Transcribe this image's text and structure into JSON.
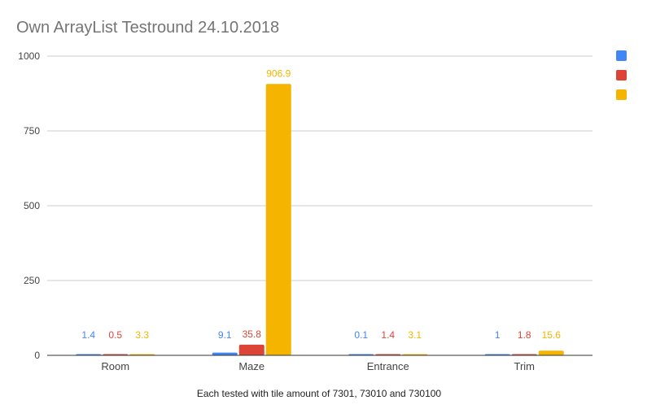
{
  "chart_data": {
    "type": "bar",
    "title": "Own ArrayList Testround 24.10.2018",
    "xlabel": "Each tested with tile amount of  7301, 73010 and 730100",
    "ylabel": "",
    "ylim": [
      0,
      1000
    ],
    "yticks": [
      "0",
      "250",
      "500",
      "750",
      "1000"
    ],
    "categories": [
      "Room",
      "Maze",
      "Entrance",
      "Trim"
    ],
    "series": [
      {
        "color": "#4285f4",
        "values": [
          1.4,
          9.1,
          0.1,
          1
        ],
        "labels": [
          "1.4",
          "9.1",
          "0.1",
          "1"
        ]
      },
      {
        "color": "#db4437",
        "values": [
          0.5,
          35.8,
          1.4,
          1.8
        ],
        "labels": [
          "0.5",
          "35.8",
          "1.4",
          "1.8"
        ]
      },
      {
        "color": "#f4b400",
        "values": [
          3.3,
          906.9,
          3.1,
          15.6
        ],
        "labels": [
          "3.3",
          "906.9",
          "3.1",
          "15.6"
        ]
      }
    ],
    "grid": true,
    "legend": "right"
  }
}
